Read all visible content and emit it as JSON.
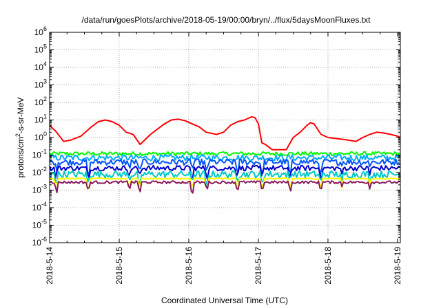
{
  "chart_data": {
    "type": "line",
    "title": "/data/run/goesPlots/archive/2018-05-19/00:00/bryn/../flux/5daysMoonFluxes.txt",
    "xlabel": "Coordinated Universal Time (UTC)",
    "ylabel_parts": {
      "pre": "protons/cm",
      "sup": "2",
      "post": "-s-sr-MeV"
    },
    "yscale": "log",
    "ylim_exp": [
      -6,
      6
    ],
    "ytick_exponents": [
      6,
      5,
      4,
      3,
      2,
      1,
      0,
      -1,
      -2,
      -3,
      -4,
      -5,
      -6
    ],
    "ytick_base": "10",
    "xlim_days": [
      0,
      5.04
    ],
    "xtick_labels": [
      "2018-5-14",
      "2018-5-15",
      "2018-5-16",
      "2018-5-17",
      "2018-5-18",
      "2018-5-19"
    ],
    "grid": true,
    "series": [
      {
        "color": "#ff0000",
        "points": [
          [
            0,
            5
          ],
          [
            0.1,
            2
          ],
          [
            0.2,
            0.6
          ],
          [
            0.3,
            0.7
          ],
          [
            0.45,
            1.2
          ],
          [
            0.6,
            4
          ],
          [
            0.7,
            8
          ],
          [
            0.8,
            10
          ],
          [
            0.9,
            8
          ],
          [
            1.0,
            5
          ],
          [
            1.1,
            2
          ],
          [
            1.2,
            1.5
          ],
          [
            1.3,
            0.4
          ],
          [
            1.45,
            1.5
          ],
          [
            1.55,
            3
          ],
          [
            1.65,
            6
          ],
          [
            1.75,
            10
          ],
          [
            1.85,
            11
          ],
          [
            1.95,
            9
          ],
          [
            2.05,
            6
          ],
          [
            2.15,
            4
          ],
          [
            2.25,
            2
          ],
          [
            2.4,
            1.5
          ],
          [
            2.5,
            2
          ],
          [
            2.6,
            5
          ],
          [
            2.7,
            8
          ],
          [
            2.8,
            10
          ],
          [
            2.9,
            15
          ],
          [
            2.95,
            14
          ],
          [
            3.0,
            6
          ],
          [
            3.05,
            0.5
          ],
          [
            3.1,
            0.4
          ],
          [
            3.2,
            0.2
          ],
          [
            3.3,
            0.2
          ],
          [
            3.4,
            0.2
          ],
          [
            3.5,
            1
          ],
          [
            3.6,
            2
          ],
          [
            3.7,
            5
          ],
          [
            3.75,
            7
          ],
          [
            3.8,
            6
          ],
          [
            3.9,
            1.5
          ],
          [
            4.0,
            1
          ],
          [
            4.1,
            0.9
          ],
          [
            4.2,
            0.8
          ],
          [
            4.3,
            0.7
          ],
          [
            4.4,
            0.6
          ],
          [
            4.5,
            1
          ],
          [
            4.6,
            1.5
          ],
          [
            4.7,
            2
          ],
          [
            4.8,
            1.8
          ],
          [
            4.9,
            1.5
          ],
          [
            5.0,
            1.2
          ],
          [
            5.04,
            1.0
          ]
        ]
      },
      {
        "color": "#00ff00",
        "base": 0.12,
        "amp": 0.22
      },
      {
        "color": "#00aaff",
        "base": 0.07,
        "amp": 0.35
      },
      {
        "color": "#0055ff",
        "base": 0.04,
        "amp": 0.35
      },
      {
        "color": "#0000cc",
        "base": 0.018,
        "amp": 0.3
      },
      {
        "color": "#00c8c8",
        "base": 0.008,
        "amp": 0.4
      },
      {
        "color": "#ffff00",
        "base": 0.0045,
        "amp": 0.08
      },
      {
        "color": "#8b1a5c",
        "base": 0.0028,
        "amp": 0.15
      }
    ]
  }
}
